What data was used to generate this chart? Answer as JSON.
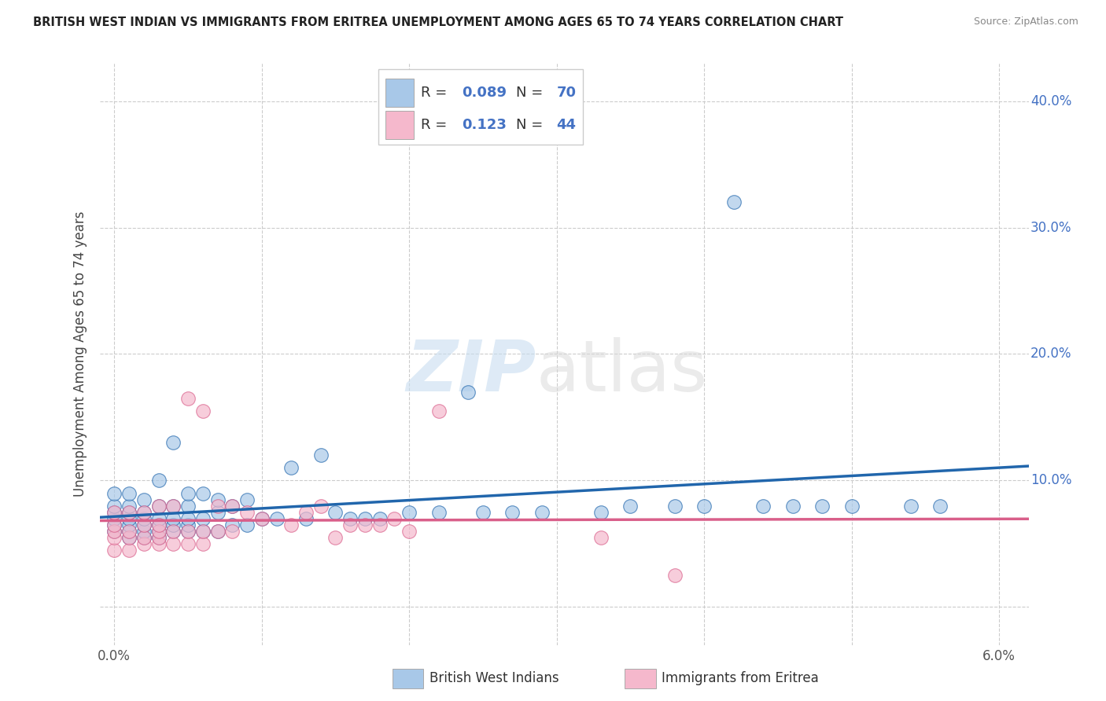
{
  "title": "BRITISH WEST INDIAN VS IMMIGRANTS FROM ERITREA UNEMPLOYMENT AMONG AGES 65 TO 74 YEARS CORRELATION CHART",
  "source": "Source: ZipAtlas.com",
  "ylabel": "Unemployment Among Ages 65 to 74 years",
  "xlim": [
    -0.001,
    0.062
  ],
  "ylim": [
    -0.03,
    0.43
  ],
  "ytick_vals": [
    0.0,
    0.1,
    0.2,
    0.3,
    0.4
  ],
  "ytick_labels": [
    "",
    "10.0%",
    "20.0%",
    "30.0%",
    "40.0%"
  ],
  "xtick_vals": [
    0.0,
    0.06
  ],
  "xtick_labels": [
    "0.0%",
    "6.0%"
  ],
  "watermark_zip": "ZIP",
  "watermark_atlas": "atlas",
  "blue_color": "#a8c8e8",
  "pink_color": "#f5b8cc",
  "blue_line_color": "#2166ac",
  "pink_line_color": "#d95f8a",
  "grid_color": "#cccccc",
  "background_color": "#ffffff",
  "blue_x": [
    0.0,
    0.0,
    0.0,
    0.0,
    0.0,
    0.0,
    0.001,
    0.001,
    0.001,
    0.001,
    0.001,
    0.001,
    0.001,
    0.002,
    0.002,
    0.002,
    0.002,
    0.002,
    0.002,
    0.003,
    0.003,
    0.003,
    0.003,
    0.003,
    0.003,
    0.004,
    0.004,
    0.004,
    0.004,
    0.004,
    0.005,
    0.005,
    0.005,
    0.005,
    0.005,
    0.006,
    0.006,
    0.006,
    0.007,
    0.007,
    0.007,
    0.008,
    0.008,
    0.009,
    0.009,
    0.01,
    0.011,
    0.012,
    0.013,
    0.014,
    0.015,
    0.016,
    0.017,
    0.018,
    0.02,
    0.022,
    0.024,
    0.025,
    0.027,
    0.029,
    0.033,
    0.035,
    0.038,
    0.04,
    0.042,
    0.044,
    0.046,
    0.048,
    0.05,
    0.054,
    0.056
  ],
  "blue_y": [
    0.06,
    0.065,
    0.07,
    0.075,
    0.08,
    0.09,
    0.055,
    0.06,
    0.065,
    0.07,
    0.075,
    0.08,
    0.09,
    0.055,
    0.06,
    0.065,
    0.07,
    0.075,
    0.085,
    0.055,
    0.06,
    0.065,
    0.07,
    0.08,
    0.1,
    0.06,
    0.065,
    0.07,
    0.08,
    0.13,
    0.06,
    0.065,
    0.07,
    0.08,
    0.09,
    0.06,
    0.07,
    0.09,
    0.06,
    0.075,
    0.085,
    0.065,
    0.08,
    0.065,
    0.085,
    0.07,
    0.07,
    0.11,
    0.07,
    0.12,
    0.075,
    0.07,
    0.07,
    0.07,
    0.075,
    0.075,
    0.17,
    0.075,
    0.075,
    0.075,
    0.075,
    0.08,
    0.08,
    0.08,
    0.32,
    0.08,
    0.08,
    0.08,
    0.08,
    0.08,
    0.08
  ],
  "pink_x": [
    0.0,
    0.0,
    0.0,
    0.0,
    0.0,
    0.001,
    0.001,
    0.001,
    0.001,
    0.002,
    0.002,
    0.002,
    0.002,
    0.003,
    0.003,
    0.003,
    0.003,
    0.003,
    0.004,
    0.004,
    0.004,
    0.005,
    0.005,
    0.005,
    0.006,
    0.006,
    0.006,
    0.007,
    0.007,
    0.008,
    0.008,
    0.009,
    0.01,
    0.012,
    0.013,
    0.014,
    0.015,
    0.016,
    0.017,
    0.018,
    0.019,
    0.02,
    0.022,
    0.033,
    0.038
  ],
  "pink_y": [
    0.045,
    0.055,
    0.06,
    0.065,
    0.075,
    0.045,
    0.055,
    0.06,
    0.075,
    0.05,
    0.055,
    0.065,
    0.075,
    0.05,
    0.055,
    0.06,
    0.065,
    0.08,
    0.05,
    0.06,
    0.08,
    0.05,
    0.06,
    0.165,
    0.05,
    0.06,
    0.155,
    0.06,
    0.08,
    0.06,
    0.08,
    0.075,
    0.07,
    0.065,
    0.075,
    0.08,
    0.055,
    0.065,
    0.065,
    0.065,
    0.07,
    0.06,
    0.155,
    0.055,
    0.025
  ]
}
